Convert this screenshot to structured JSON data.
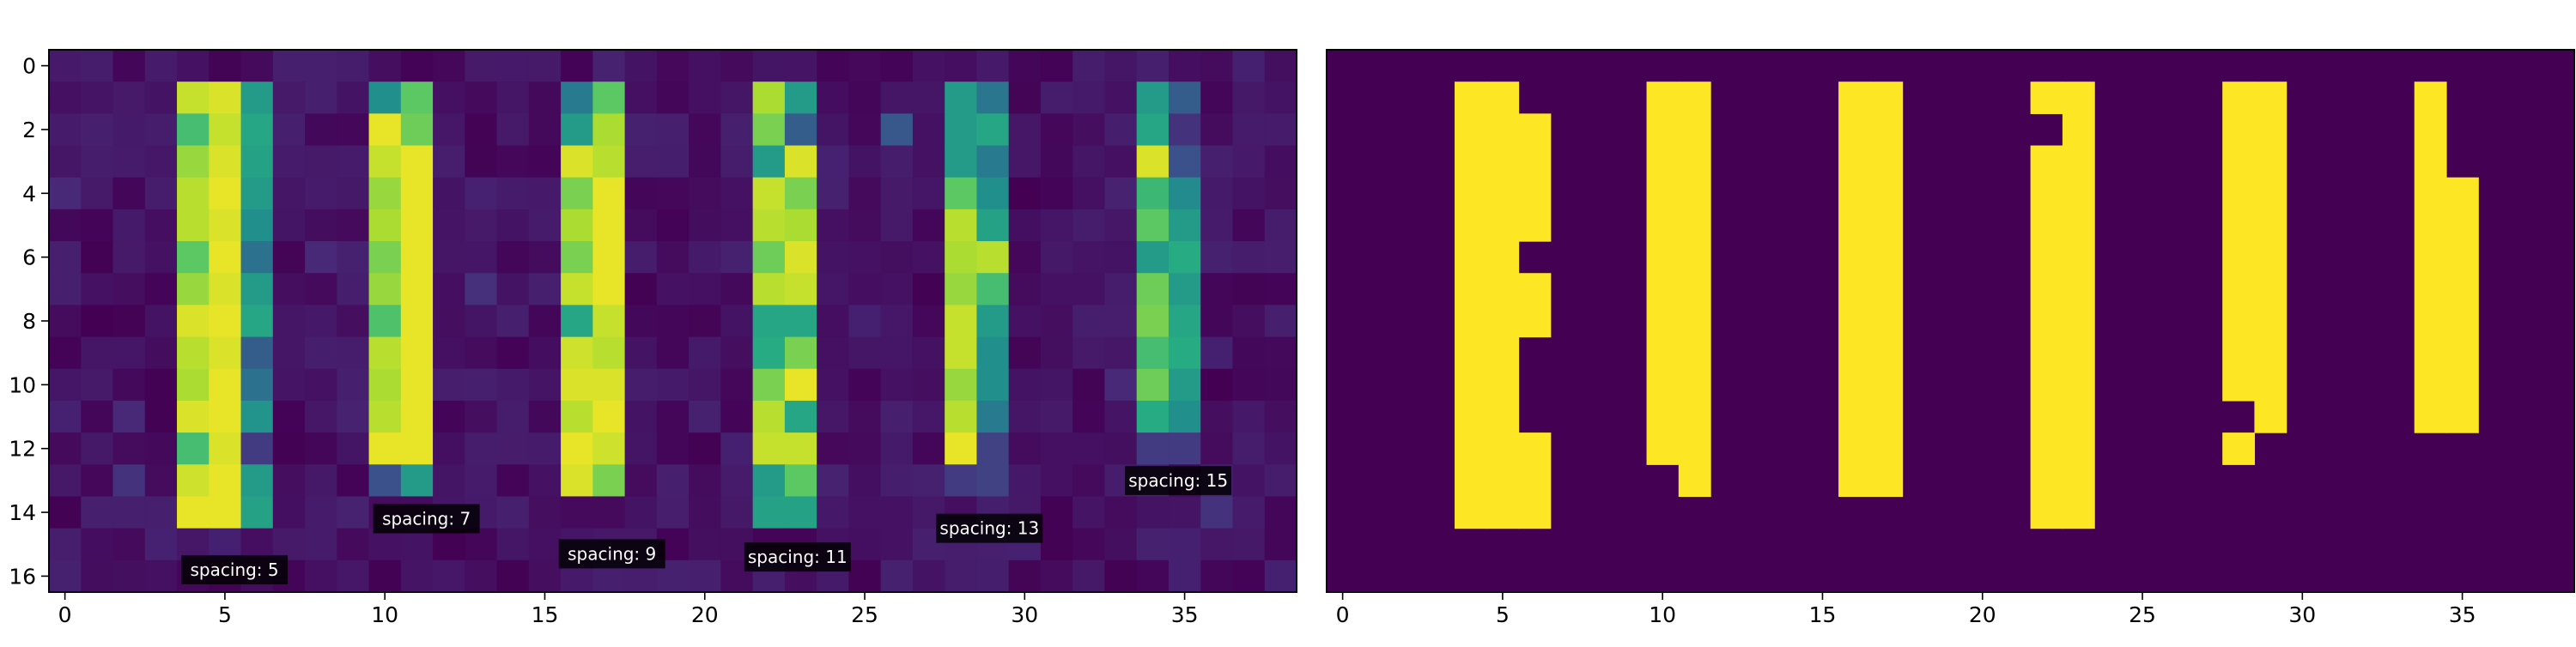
{
  "chart_data": [
    {
      "type": "heatmap",
      "colormap": "viridis",
      "xlim": [
        -0.5,
        38.5
      ],
      "ylim": [
        16.5,
        -0.5
      ],
      "x_ticks": [
        0,
        5,
        10,
        15,
        20,
        25,
        30,
        35
      ],
      "y_ticks": [
        0,
        2,
        4,
        6,
        8,
        10,
        12,
        14,
        16
      ],
      "rows": 17,
      "cols": 39,
      "background_level": 0.05,
      "stripes": [
        {
          "col_start": 4,
          "col_end": 6,
          "row_start": 1,
          "row_end": 14,
          "values": [
            [
              0.92,
              0.95,
              0.55
            ],
            [
              0.7,
              0.92,
              0.6
            ],
            [
              0.85,
              0.95,
              0.58
            ],
            [
              0.9,
              0.97,
              0.55
            ],
            [
              0.9,
              0.95,
              0.5
            ],
            [
              0.75,
              0.97,
              0.38
            ],
            [
              0.85,
              0.95,
              0.55
            ],
            [
              0.95,
              0.97,
              0.6
            ],
            [
              0.9,
              0.95,
              0.3
            ],
            [
              0.88,
              0.97,
              0.38
            ],
            [
              0.95,
              0.97,
              0.52
            ],
            [
              0.7,
              0.95,
              0.18
            ],
            [
              0.93,
              0.97,
              0.55
            ],
            [
              0.97,
              0.97,
              0.58
            ]
          ],
          "label": "spacing: 5",
          "label_x": 5.3,
          "label_y": 15.8
        },
        {
          "col_start": 10,
          "col_end": 11,
          "row_start": 1,
          "row_end": 13,
          "values": [
            [
              0.5,
              0.75
            ],
            [
              0.97,
              0.78
            ],
            [
              0.92,
              0.97
            ],
            [
              0.85,
              0.97
            ],
            [
              0.88,
              0.97
            ],
            [
              0.8,
              0.97
            ],
            [
              0.85,
              0.97
            ],
            [
              0.72,
              0.97
            ],
            [
              0.9,
              0.97
            ],
            [
              0.88,
              0.97
            ],
            [
              0.9,
              0.97
            ],
            [
              0.97,
              0.97
            ],
            [
              0.25,
              0.55
            ]
          ],
          "label": "spacing: 7",
          "label_x": 11.3,
          "label_y": 14.2
        },
        {
          "col_start": 16,
          "col_end": 17,
          "row_start": 1,
          "row_end": 13,
          "values": [
            [
              0.42,
              0.75
            ],
            [
              0.55,
              0.88
            ],
            [
              0.95,
              0.9
            ],
            [
              0.8,
              0.97
            ],
            [
              0.88,
              0.97
            ],
            [
              0.8,
              0.97
            ],
            [
              0.92,
              0.97
            ],
            [
              0.6,
              0.92
            ],
            [
              0.93,
              0.9
            ],
            [
              0.95,
              0.95
            ],
            [
              0.9,
              0.97
            ],
            [
              0.97,
              0.93
            ],
            [
              0.95,
              0.8
            ]
          ],
          "label": "spacing: 9",
          "label_x": 17.1,
          "label_y": 15.3
        },
        {
          "col_start": 22,
          "col_end": 23,
          "row_start": 1,
          "row_end": 14,
          "values": [
            [
              0.88,
              0.55
            ],
            [
              0.8,
              0.3
            ],
            [
              0.55,
              0.95
            ],
            [
              0.92,
              0.8
            ],
            [
              0.9,
              0.88
            ],
            [
              0.78,
              0.95
            ],
            [
              0.9,
              0.92
            ],
            [
              0.6,
              0.6
            ],
            [
              0.62,
              0.8
            ],
            [
              0.8,
              0.97
            ],
            [
              0.9,
              0.6
            ],
            [
              0.92,
              0.92
            ],
            [
              0.55,
              0.75
            ],
            [
              0.58,
              0.58
            ]
          ],
          "label": "spacing: 11",
          "label_x": 22.9,
          "label_y": 15.4
        },
        {
          "col_start": 28,
          "col_end": 29,
          "row_start": 1,
          "row_end": 13,
          "values": [
            [
              0.55,
              0.4
            ],
            [
              0.55,
              0.6
            ],
            [
              0.55,
              0.42
            ],
            [
              0.75,
              0.5
            ],
            [
              0.9,
              0.58
            ],
            [
              0.88,
              0.9
            ],
            [
              0.85,
              0.7
            ],
            [
              0.92,
              0.55
            ],
            [
              0.92,
              0.5
            ],
            [
              0.85,
              0.5
            ],
            [
              0.9,
              0.42
            ],
            [
              0.97,
              0.2
            ],
            [
              0.18,
              0.2
            ]
          ],
          "label": "spacing: 13",
          "label_x": 28.9,
          "label_y": 14.5
        },
        {
          "col_start": 34,
          "col_end": 35,
          "row_start": 1,
          "row_end": 12,
          "values": [
            [
              0.55,
              0.3
            ],
            [
              0.6,
              0.15
            ],
            [
              0.95,
              0.25
            ],
            [
              0.68,
              0.48
            ],
            [
              0.75,
              0.55
            ],
            [
              0.55,
              0.62
            ],
            [
              0.78,
              0.55
            ],
            [
              0.8,
              0.6
            ],
            [
              0.7,
              0.62
            ],
            [
              0.78,
              0.55
            ],
            [
              0.62,
              0.5
            ],
            [
              0.18,
              0.18
            ]
          ],
          "label": "spacing: 15",
          "label_x": 34.8,
          "label_y": 13.0
        }
      ],
      "noise_cells": [
        {
          "row": 2,
          "col": 26,
          "value": 0.28
        },
        {
          "row": 13,
          "col": 2,
          "value": 0.15
        },
        {
          "row": 7,
          "col": 13,
          "value": 0.14
        },
        {
          "row": 11,
          "col": 2,
          "value": 0.12
        },
        {
          "row": 6,
          "col": 8,
          "value": 0.12
        },
        {
          "row": 10,
          "col": 33,
          "value": 0.12
        },
        {
          "row": 4,
          "col": 0,
          "value": 0.12
        },
        {
          "row": 14,
          "col": 36,
          "value": 0.15
        }
      ]
    },
    {
      "type": "heatmap",
      "colormap": "binary-viridis",
      "xlim": [
        -0.5,
        38.5
      ],
      "ylim": [
        16.5,
        -0.5
      ],
      "x_ticks": [
        0,
        5,
        10,
        15,
        20,
        25,
        30,
        35
      ],
      "rows": 17,
      "cols": 39,
      "on_cells": [
        {
          "col": 4,
          "rows": [
            [
              1,
              14
            ]
          ]
        },
        {
          "col": 5,
          "rows": [
            [
              1,
              14
            ]
          ]
        },
        {
          "col": 6,
          "rows": [
            [
              2,
              5
            ],
            [
              7,
              8
            ],
            [
              12,
              14
            ]
          ]
        },
        {
          "col": 10,
          "rows": [
            [
              1,
              12
            ]
          ]
        },
        {
          "col": 11,
          "rows": [
            [
              1,
              13
            ]
          ]
        },
        {
          "col": 16,
          "rows": [
            [
              1,
              13
            ]
          ]
        },
        {
          "col": 17,
          "rows": [
            [
              1,
              13
            ]
          ]
        },
        {
          "col": 22,
          "rows": [
            [
              1,
              1
            ],
            [
              3,
              14
            ]
          ]
        },
        {
          "col": 23,
          "rows": [
            [
              1,
              14
            ]
          ]
        },
        {
          "col": 28,
          "rows": [
            [
              1,
              10
            ],
            [
              12,
              12
            ]
          ]
        },
        {
          "col": 29,
          "rows": [
            [
              1,
              11
            ]
          ]
        },
        {
          "col": 34,
          "rows": [
            [
              1,
              11
            ]
          ]
        },
        {
          "col": 35,
          "rows": [
            [
              4,
              11
            ]
          ]
        }
      ]
    }
  ]
}
